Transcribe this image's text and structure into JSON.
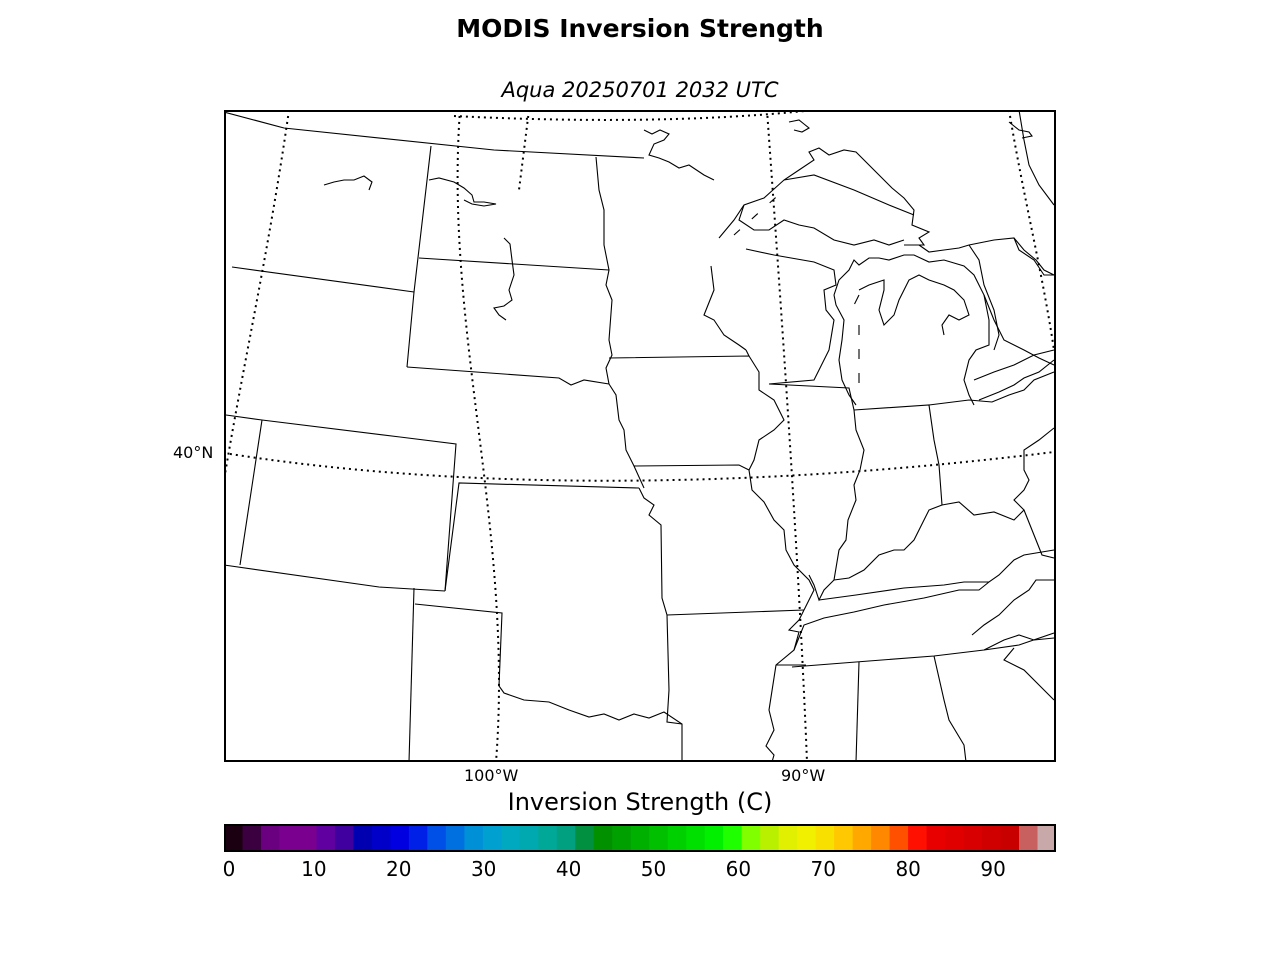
{
  "title": "MODIS Inversion Strength",
  "subtitle": "Aqua 20250701 2032 UTC",
  "map": {
    "region": "Central United States / Great Lakes",
    "lat_labels": [
      "40°N"
    ],
    "lon_labels": [
      "100°W",
      "90°W"
    ]
  },
  "colorbar": {
    "label": "Inversion Strength (C)",
    "ticks": [
      "0",
      "10",
      "20",
      "30",
      "40",
      "50",
      "60",
      "70",
      "80",
      "90"
    ],
    "colors": [
      "#1a0010",
      "#3a0040",
      "#6a0080",
      "#7a0090",
      "#7a0090",
      "#6000a0",
      "#4000a0",
      "#0000b0",
      "#0000c8",
      "#0000e0",
      "#0020e8",
      "#0050e8",
      "#0070e0",
      "#0090d8",
      "#00a0d0",
      "#00a8c0",
      "#00a8b0",
      "#00a898",
      "#00a080",
      "#009040",
      "#009000",
      "#00a000",
      "#00b000",
      "#00c000",
      "#00d000",
      "#00e000",
      "#00f000",
      "#20ff00",
      "#80ff00",
      "#b8f000",
      "#e0f000",
      "#f0f000",
      "#f8e000",
      "#ffc800",
      "#ffa800",
      "#ff8800",
      "#ff5000",
      "#ff1000",
      "#e80000",
      "#e00000",
      "#d80000",
      "#d00000",
      "#c80000",
      "#c86060",
      "#c8a8a8"
    ]
  }
}
